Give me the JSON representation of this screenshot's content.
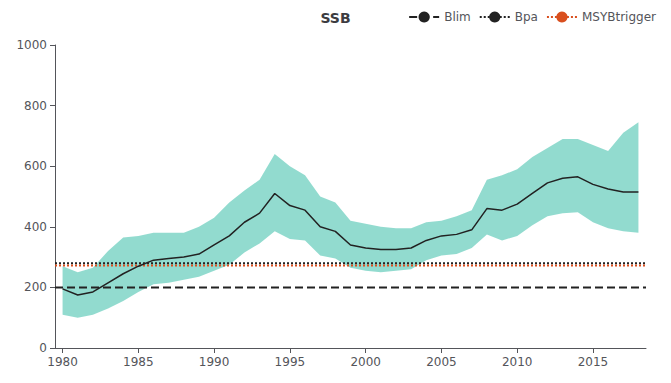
{
  "chart_data": {
    "type": "line",
    "title": "SSB",
    "x": [
      1980,
      1981,
      1982,
      1983,
      1984,
      1985,
      1986,
      1987,
      1988,
      1989,
      1990,
      1991,
      1992,
      1993,
      1994,
      1995,
      1996,
      1997,
      1998,
      1999,
      2000,
      2001,
      2002,
      2003,
      2004,
      2005,
      2006,
      2007,
      2008,
      2009,
      2010,
      2011,
      2012,
      2013,
      2014,
      2015,
      2016,
      2017,
      2018
    ],
    "series": [
      {
        "type": "band",
        "color": "#6ecfbf",
        "lower": [
          110,
          100,
          110,
          130,
          155,
          185,
          210,
          215,
          225,
          235,
          255,
          275,
          315,
          345,
          385,
          360,
          355,
          305,
          295,
          265,
          255,
          250,
          255,
          260,
          290,
          305,
          310,
          330,
          375,
          355,
          370,
          405,
          435,
          445,
          448,
          415,
          395,
          385,
          380
        ],
        "upper": [
          270,
          250,
          265,
          320,
          365,
          370,
          380,
          380,
          380,
          400,
          430,
          480,
          520,
          555,
          640,
          600,
          570,
          500,
          480,
          420,
          410,
          400,
          395,
          395,
          415,
          420,
          435,
          455,
          555,
          570,
          590,
          630,
          660,
          690,
          690,
          670,
          650,
          710,
          745
        ]
      },
      {
        "type": "line",
        "color": "#222222",
        "line_style": "solid",
        "values": [
          195,
          175,
          185,
          215,
          245,
          270,
          290,
          295,
          300,
          310,
          340,
          370,
          415,
          445,
          510,
          470,
          455,
          400,
          385,
          340,
          330,
          325,
          325,
          330,
          355,
          370,
          375,
          390,
          460,
          455,
          475,
          510,
          545,
          560,
          565,
          540,
          525,
          515,
          515
        ]
      }
    ],
    "hlines": [
      {
        "name": "Blim",
        "value": 200,
        "color": "#222222",
        "line_style": "dashed"
      },
      {
        "name": "Bpa",
        "value": 280,
        "color": "#222222",
        "line_style": "dotted"
      },
      {
        "name": "MSYBtrigger",
        "value": 272,
        "color": "#d94f1e",
        "line_style": "dotted"
      }
    ],
    "xlim": [
      1979.5,
      2018.5
    ],
    "xticks": [
      1980,
      1985,
      1990,
      1995,
      2000,
      2005,
      2010,
      2015
    ],
    "ylim": [
      0,
      1000
    ],
    "yticks": [
      0,
      200,
      400,
      600,
      800,
      1000
    ],
    "grid": false,
    "legend": "upper right"
  }
}
